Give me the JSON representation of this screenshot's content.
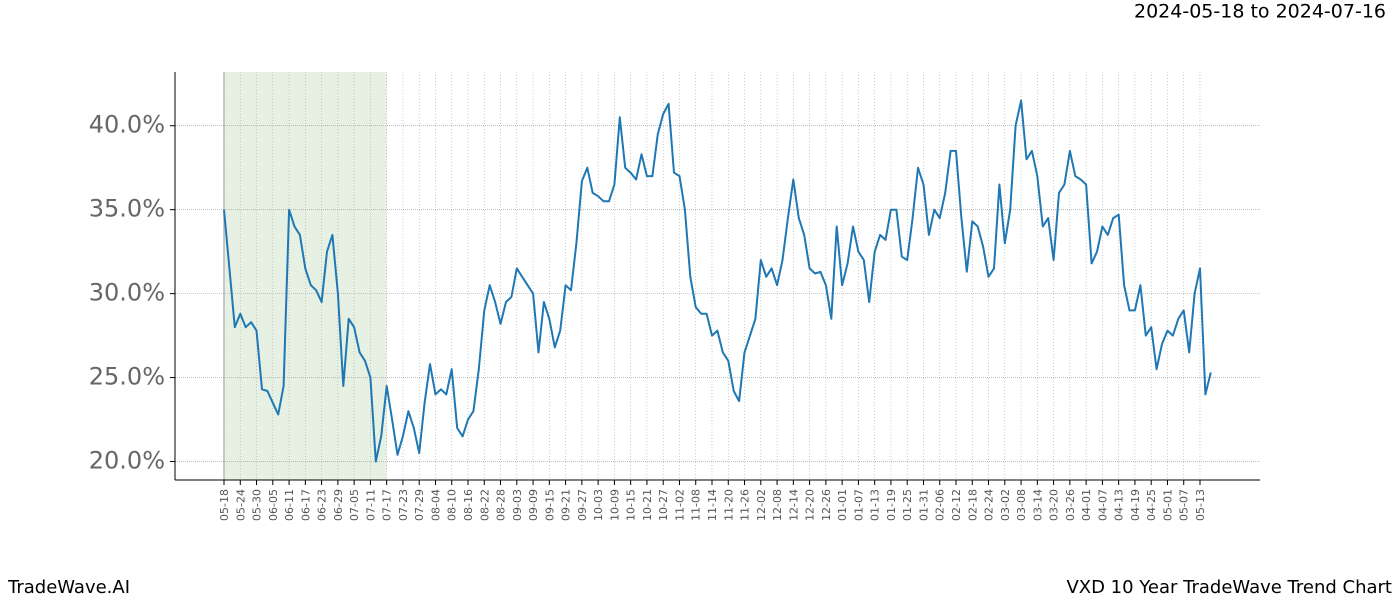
{
  "chart_data": {
    "type": "line",
    "date_range": "2024-05-18 to 2024-07-16",
    "footer_left": "TradeWave.AI",
    "footer_right": "VXD 10 Year TradeWave Trend Chart",
    "color": "#1f77b4",
    "shaded_range": {
      "from": "05-18",
      "to": "07-17",
      "color": "#e6f0e3"
    },
    "grid": true,
    "ylim": [
      18.9,
      43.2
    ],
    "yticks": [
      {
        "value": 20,
        "label": "20.0%"
      },
      {
        "value": 25,
        "label": "25.0%"
      },
      {
        "value": 30,
        "label": "30.0%"
      },
      {
        "value": 35,
        "label": "35.0%"
      },
      {
        "value": 40,
        "label": "40.0%"
      }
    ],
    "categories": [
      "05-18",
      null,
      null,
      "05-24",
      null,
      null,
      "05-30",
      null,
      null,
      "06-05",
      null,
      null,
      "06-11",
      null,
      null,
      "06-17",
      null,
      null,
      "06-23",
      null,
      null,
      "06-29",
      null,
      null,
      "07-05",
      null,
      null,
      "07-11",
      null,
      null,
      "07-17",
      null,
      null,
      "07-23",
      null,
      null,
      "07-29",
      null,
      null,
      "08-04",
      null,
      null,
      "08-10",
      null,
      null,
      "08-16",
      null,
      null,
      "08-22",
      null,
      null,
      "08-28",
      null,
      null,
      "09-03",
      null,
      null,
      "09-09",
      null,
      null,
      "09-15",
      null,
      null,
      "09-21",
      null,
      null,
      "09-27",
      null,
      null,
      "10-03",
      null,
      null,
      "10-09",
      null,
      null,
      "10-15",
      null,
      null,
      "10-21",
      null,
      null,
      "10-27",
      null,
      null,
      "11-02",
      null,
      null,
      "11-08",
      null,
      null,
      "11-14",
      null,
      null,
      "11-20",
      null,
      null,
      "11-26",
      null,
      null,
      "12-02",
      null,
      null,
      "12-08",
      null,
      null,
      "12-14",
      null,
      null,
      "12-20",
      null,
      null,
      "12-26",
      null,
      null,
      "01-01",
      null,
      null,
      "01-07",
      null,
      null,
      "01-13",
      null,
      null,
      "01-19",
      null,
      null,
      "01-25",
      null,
      null,
      "01-31",
      null,
      null,
      "02-06",
      null,
      null,
      "02-12",
      null,
      null,
      "02-18",
      null,
      null,
      "02-24",
      null,
      null,
      "03-02",
      null,
      null,
      "03-08",
      null,
      null,
      "03-14",
      null,
      null,
      "03-20",
      null,
      null,
      "03-26",
      null,
      null,
      "04-01",
      null,
      null,
      "04-07",
      null,
      null,
      "04-13",
      null,
      null,
      "04-19",
      null,
      null,
      "04-25",
      null,
      null,
      "05-01",
      null,
      null,
      "05-07",
      null,
      null,
      "05-13",
      null,
      null
    ],
    "values": [
      35.0,
      31.5,
      28.0,
      28.8,
      28.0,
      28.3,
      27.8,
      24.3,
      24.2,
      23.5,
      22.8,
      24.5,
      35.0,
      34.0,
      33.5,
      31.5,
      30.5,
      30.2,
      29.5,
      32.5,
      33.5,
      30.0,
      24.5,
      28.5,
      28.0,
      26.5,
      26.0,
      25.0,
      20.0,
      21.5,
      24.5,
      22.5,
      20.4,
      21.5,
      23.0,
      22.0,
      20.5,
      23.5,
      25.8,
      24.0,
      24.3,
      24.0,
      25.5,
      22.0,
      21.5,
      22.5,
      23.0,
      25.5,
      29.0,
      30.5,
      29.5,
      28.2,
      29.5,
      29.8,
      31.5,
      31.0,
      30.5,
      30.0,
      26.5,
      29.5,
      28.5,
      26.8,
      27.8,
      30.5,
      30.2,
      33.0,
      36.7,
      37.5,
      36.0,
      35.8,
      35.5,
      35.5,
      36.5,
      40.5,
      37.5,
      37.2,
      36.8,
      38.3,
      37.0,
      37.0,
      39.5,
      40.7,
      41.3,
      37.2,
      37.0,
      35.0,
      31.0,
      29.2,
      28.8,
      28.8,
      27.5,
      27.8,
      26.5,
      26.0,
      24.2,
      23.6,
      26.5,
      27.5,
      28.5,
      32.0,
      31.0,
      31.5,
      30.5,
      32.0,
      34.5,
      36.8,
      34.5,
      33.5,
      31.5,
      31.2,
      31.3,
      30.5,
      28.5,
      34.0,
      30.5,
      31.8,
      34.0,
      32.5,
      32.0,
      29.5,
      32.5,
      33.5,
      33.2,
      35.0,
      35.0,
      32.2,
      32.0,
      34.5,
      37.5,
      36.5,
      33.5,
      35.0,
      34.5,
      36.0,
      38.5,
      38.5,
      34.5,
      31.3,
      34.3,
      34.0,
      32.8,
      31.0,
      31.5,
      36.5,
      33.0,
      35.0,
      40.0,
      41.5,
      38.0,
      38.5,
      37.0,
      34.0,
      34.5,
      32.0,
      36.0,
      36.5,
      38.5,
      37.0,
      36.8,
      36.5,
      31.8,
      32.5,
      34.0,
      33.5,
      34.5,
      34.7,
      30.5,
      29.0,
      29.0,
      30.5,
      27.5,
      28.0,
      25.5,
      27.0,
      27.8,
      27.5,
      28.5,
      29.0,
      26.5,
      30.0,
      31.5,
      24.0,
      25.3
    ]
  }
}
